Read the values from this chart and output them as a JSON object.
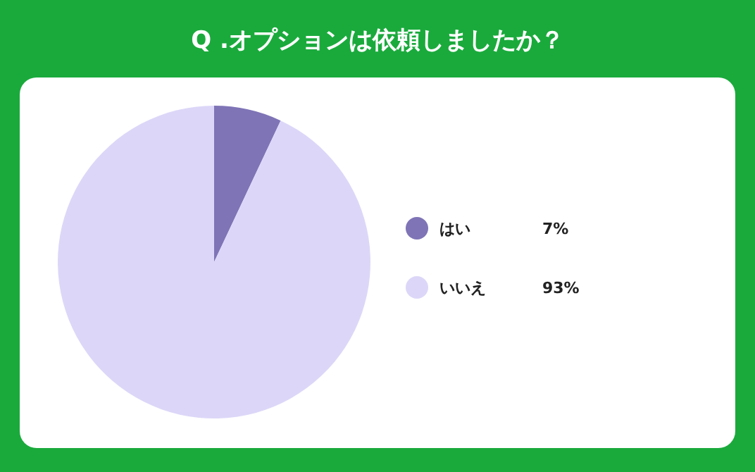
{
  "chart_data": {
    "type": "pie",
    "title": "Q .オプションは依頼しましたか？",
    "categories": [
      "はい",
      "いいえ"
    ],
    "values": [
      7,
      93
    ],
    "colors": [
      "#7f74b6",
      "#dcd7f8"
    ],
    "value_labels": [
      "7%",
      "93%"
    ],
    "legend": "right"
  }
}
